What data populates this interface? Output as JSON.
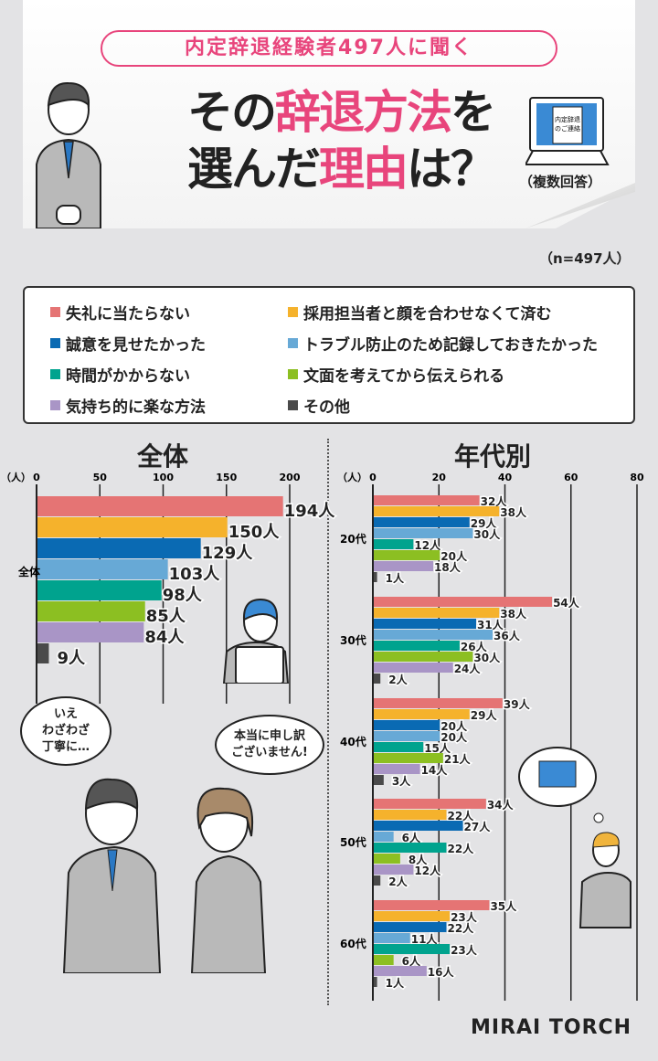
{
  "header": {
    "pill": "内定辞退経験者497人に聞く",
    "title_a": "その",
    "title_b": "辞退方法",
    "title_c": "を",
    "title_d": "選んだ",
    "title_e": "理由",
    "title_f": "は？",
    "laptop_text_1": "内定辞退",
    "laptop_text_2": "のご連絡",
    "note": "（複数回答）",
    "n": "（n=497人）"
  },
  "colors": {
    "accent": "#e8457c"
  },
  "legend": [
    {
      "label": "失礼に当たらない",
      "color": "#e57474"
    },
    {
      "label": "採用担当者と顔を合わせなくて済む",
      "color": "#f5b22c"
    },
    {
      "label": "誠意を見せたかった",
      "color": "#0a6ab3"
    },
    {
      "label": "トラブル防止のため記録しておきたかった",
      "color": "#67a9d6"
    },
    {
      "label": "時間がかからない",
      "color": "#00a38e"
    },
    {
      "label": "文面を考えてから伝えられる",
      "color": "#8cbf22"
    },
    {
      "label": "気持ち的に楽な方法",
      "color": "#a995c6"
    },
    {
      "label": "その他",
      "color": "#4a4a4a"
    }
  ],
  "chart_data": [
    {
      "type": "bar",
      "orientation": "horizontal",
      "title": "全体",
      "unit_label": "（人）",
      "value_suffix": "人",
      "xlim": [
        0,
        200
      ],
      "ticks": [
        0,
        50,
        100,
        150,
        200
      ],
      "grid": true,
      "categories": [
        "全体"
      ],
      "series_values": [
        194,
        150,
        129,
        103,
        98,
        85,
        84,
        9
      ]
    },
    {
      "type": "bar",
      "orientation": "horizontal",
      "title": "年代別",
      "unit_label": "（人）",
      "value_suffix": "人",
      "xlim": [
        0,
        80
      ],
      "ticks": [
        0,
        20,
        40,
        60,
        80
      ],
      "grid": true,
      "categories": [
        "20代",
        "30代",
        "40代",
        "50代",
        "60代"
      ],
      "groups": [
        [
          32,
          38,
          29,
          30,
          12,
          20,
          18,
          1
        ],
        [
          54,
          38,
          31,
          36,
          26,
          30,
          24,
          2
        ],
        [
          39,
          29,
          20,
          20,
          15,
          21,
          14,
          3
        ],
        [
          34,
          22,
          27,
          6,
          22,
          8,
          12,
          2
        ],
        [
          35,
          23,
          22,
          11,
          23,
          6,
          16,
          1
        ]
      ]
    }
  ],
  "bubbles": {
    "left": "いえ\nわざわざ\n丁寧に…",
    "right": "本当に申し訳\nございません!"
  },
  "logo": "MIRAI TORCH"
}
